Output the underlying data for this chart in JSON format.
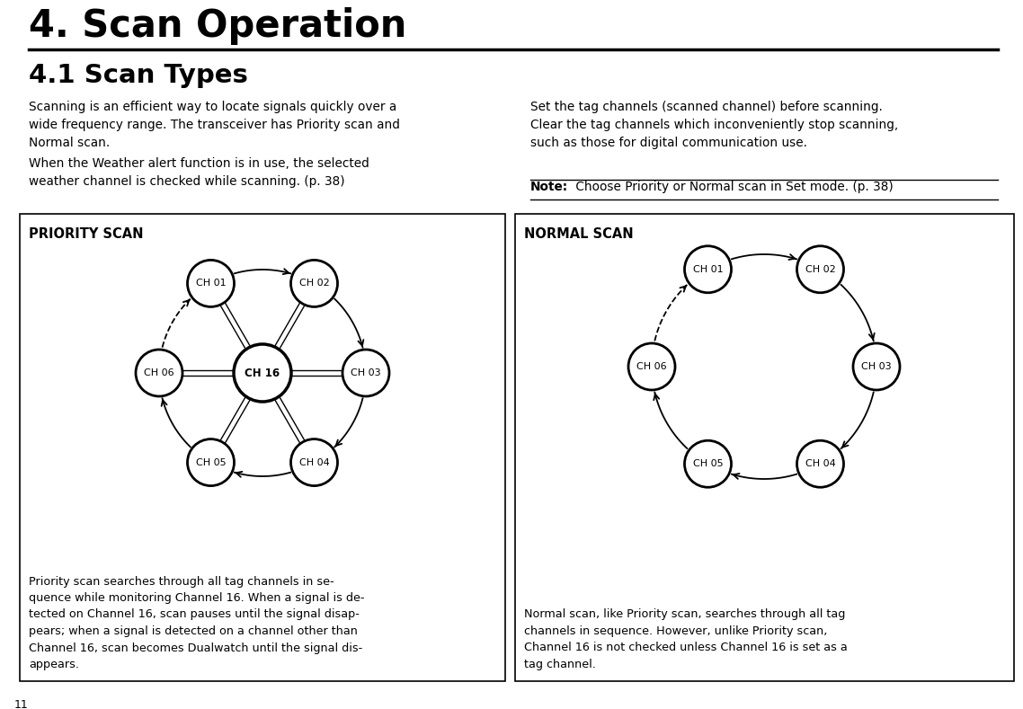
{
  "title": "4. Scan Operation",
  "subtitle": "4.1 Scan Types",
  "bg_color": "#ffffff",
  "body_text_left_col1": "Scanning is an efficient way to locate signals quickly over a\nwide frequency range. The transceiver has Priority scan and\nNormal scan.",
  "body_text_left_col2": "When the Weather alert function is in use, the selected\nweather channel is checked while scanning. (p. 38)",
  "body_text_right_col1": "Set the tag channels (scanned channel) before scanning.\nClear the tag channels which inconveniently stop scanning,\nsuch as those for digital communication use.",
  "note_bold": "Note:",
  "note_text": " Choose Priority or Normal scan in Set mode. (p. 38)",
  "priority_label": "PRIORITY SCAN",
  "normal_label": "NORMAL SCAN",
  "priority_desc": "Priority scan searches through all tag channels in se-\nquence while monitoring Channel 16. When a signal is de-\ntected on Channel 16, scan pauses until the signal disap-\npears; when a signal is detected on a channel other than\nChannel 16, scan becomes Dualwatch until the signal dis-\nappears.",
  "normal_desc": "Normal scan, like Priority scan, searches through all tag\nchannels in sequence. However, unlike Priority scan,\nChannel 16 is not checked unless Channel 16 is set as a\ntag channel.",
  "page_num": "11"
}
